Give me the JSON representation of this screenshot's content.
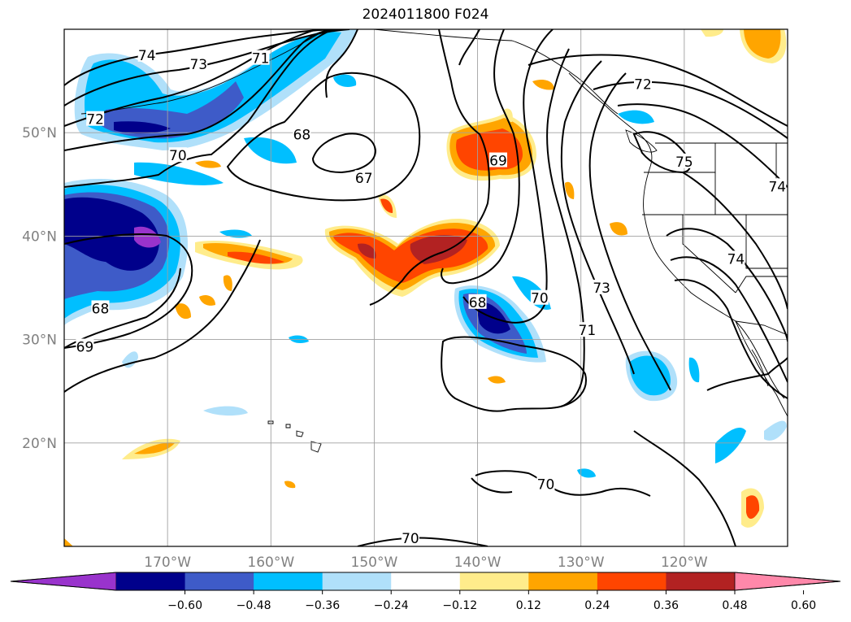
{
  "title": "2024011800 F024",
  "map": {
    "lon_range": [
      -180,
      -110
    ],
    "lat_range": [
      10,
      60
    ],
    "lat_ticks": [
      {
        "value": 20,
        "label": "20°N"
      },
      {
        "value": 30,
        "label": "30°N"
      },
      {
        "value": 40,
        "label": "40°N"
      },
      {
        "value": 50,
        "label": "50°N"
      }
    ],
    "lon_ticks": [
      {
        "value": -170,
        "label": "170°W"
      },
      {
        "value": -160,
        "label": "160°W"
      },
      {
        "value": -150,
        "label": "150°W"
      },
      {
        "value": -140,
        "label": "140°W"
      },
      {
        "value": -130,
        "label": "130°W"
      },
      {
        "value": -120,
        "label": "120°W"
      }
    ],
    "grid": true,
    "contour_labels": [
      {
        "text": "74",
        "lon": -172,
        "lat": 57.5
      },
      {
        "text": "73",
        "lon": -167,
        "lat": 56.6
      },
      {
        "text": "71",
        "lon": -161,
        "lat": 57.2
      },
      {
        "text": "72",
        "lon": -177,
        "lat": 51.3
      },
      {
        "text": "70",
        "lon": -169,
        "lat": 47.8
      },
      {
        "text": "68",
        "lon": -157,
        "lat": 49.8
      },
      {
        "text": "67",
        "lon": -151,
        "lat": 45.6
      },
      {
        "text": "69",
        "lon": -138,
        "lat": 47.3
      },
      {
        "text": "72",
        "lon": -124,
        "lat": 54.7
      },
      {
        "text": "75",
        "lon": -120,
        "lat": 47.2
      },
      {
        "text": "74",
        "lon": -111,
        "lat": 44.8
      },
      {
        "text": "74",
        "lon": -115,
        "lat": 37.8
      },
      {
        "text": "73",
        "lon": -128,
        "lat": 35.0
      },
      {
        "text": "71",
        "lon": -129.4,
        "lat": 30.9
      },
      {
        "text": "70",
        "lon": -134,
        "lat": 34.0
      },
      {
        "text": "68",
        "lon": -140,
        "lat": 33.6
      },
      {
        "text": "68",
        "lon": -176.5,
        "lat": 33.0
      },
      {
        "text": "69",
        "lon": -178.0,
        "lat": 29.3
      },
      {
        "text": "70",
        "lon": -133.4,
        "lat": 16.0
      },
      {
        "text": "70",
        "lon": -146.5,
        "lat": 10.8
      }
    ]
  },
  "colorbar": {
    "colors": [
      "#9933cc",
      "#00008b",
      "#3e5bc8",
      "#00bfff",
      "#b0e0fa",
      "#ffffff",
      "#ffec8b",
      "#ffa500",
      "#ff4500",
      "#b22222",
      "#ff88aa"
    ],
    "tick_labels": [
      "−0.60",
      "−0.48",
      "−0.36",
      "−0.24",
      "−0.12",
      "0.12",
      "0.24",
      "0.36",
      "0.48",
      "0.60"
    ]
  }
}
